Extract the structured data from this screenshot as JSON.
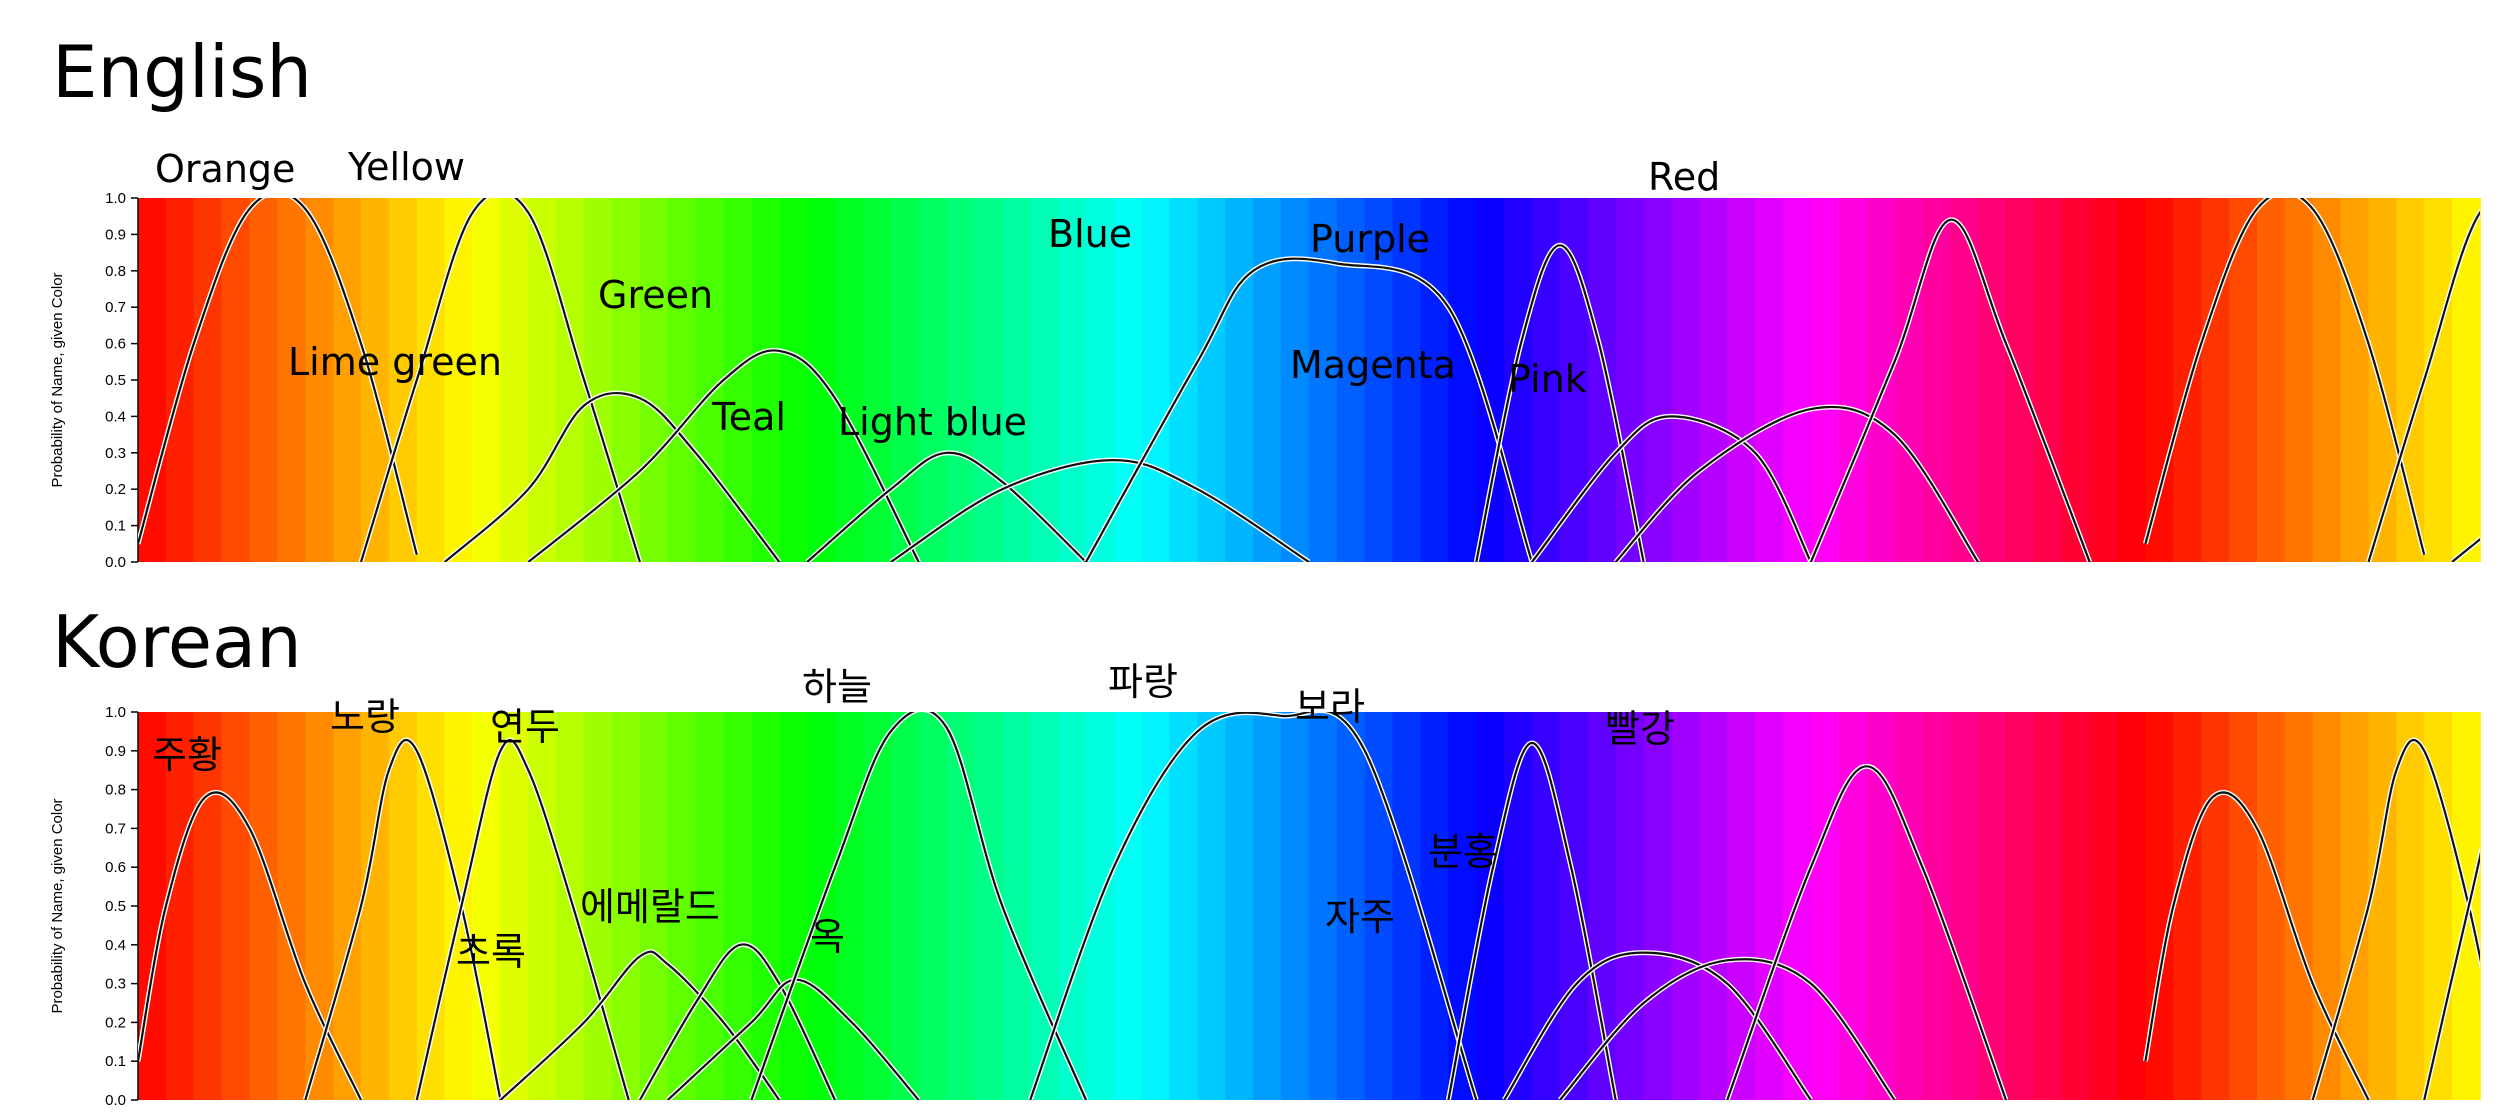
{
  "panels": [
    {
      "title": "English",
      "chart_data": {
        "type": "line",
        "ylabel": "Probability of Name, given Color",
        "ylim": [
          0,
          1
        ],
        "yticks": [
          "0.0",
          "0.1",
          "0.2",
          "0.3",
          "0.4",
          "0.5",
          "0.6",
          "0.7",
          "0.8",
          "0.9",
          "1.0"
        ],
        "xlabel": "",
        "x_hue_range_deg": [
          0,
          420
        ],
        "series": [
          {
            "name": "Orange",
            "x": [
              0,
              10,
              20,
              30,
              40,
              50
            ],
            "y": [
              0.05,
              0.6,
              0.97,
              0.97,
              0.6,
              0.02
            ]
          },
          {
            "name": "Yellow",
            "x": [
              40,
              50,
              60,
              70,
              80,
              90
            ],
            "y": [
              0.0,
              0.5,
              0.96,
              0.96,
              0.5,
              0.0
            ]
          },
          {
            "name": "Lime green",
            "x": [
              55,
              70,
              80,
              90,
              100,
              115
            ],
            "y": [
              0.0,
              0.2,
              0.43,
              0.45,
              0.3,
              0.0
            ]
          },
          {
            "name": "Green",
            "x": [
              70,
              90,
              105,
              115,
              125,
              140
            ],
            "y": [
              0.0,
              0.25,
              0.5,
              0.58,
              0.45,
              0.0
            ]
          },
          {
            "name": "Teal",
            "x": [
              120,
              135,
              145,
              155,
              170
            ],
            "y": [
              0.0,
              0.2,
              0.3,
              0.22,
              0.0
            ]
          },
          {
            "name": "Light blue",
            "x": [
              135,
              155,
              175,
              190,
              210
            ],
            "y": [
              0.0,
              0.2,
              0.28,
              0.2,
              0.0
            ]
          },
          {
            "name": "Blue",
            "x": [
              170,
              190,
              200,
              215,
              235,
              250
            ],
            "y": [
              0.0,
              0.55,
              0.8,
              0.82,
              0.7,
              0.0
            ]
          },
          {
            "name": "Purple",
            "x": [
              240,
              248,
              255,
              262,
              270
            ],
            "y": [
              0.0,
              0.6,
              0.87,
              0.6,
              0.0
            ]
          },
          {
            "name": "Magenta",
            "x": [
              250,
              265,
              275,
              290,
              300
            ],
            "y": [
              0.0,
              0.3,
              0.4,
              0.3,
              0.0
            ]
          },
          {
            "name": "Pink",
            "x": [
              265,
              280,
              300,
              315,
              330
            ],
            "y": [
              0.0,
              0.25,
              0.42,
              0.35,
              0.0
            ]
          },
          {
            "name": "Red",
            "x": [
              300,
              315,
              325,
              335,
              350
            ],
            "y": [
              0.0,
              0.55,
              0.94,
              0.6,
              0.0
            ]
          }
        ]
      }
    },
    {
      "title": "Korean",
      "chart_data": {
        "type": "line",
        "ylabel": "Probability of Name, given Color",
        "ylim": [
          0,
          1
        ],
        "yticks": [
          "0.0",
          "0.1",
          "0.2",
          "0.3",
          "0.4",
          "0.5",
          "0.6",
          "0.7",
          "0.8",
          "0.9",
          "1.0"
        ],
        "xlabel": "",
        "x_hue_range_deg": [
          0,
          420
        ],
        "series": [
          {
            "name": "주황",
            "x": [
              0,
              5,
              12,
              20,
              30,
              40
            ],
            "y": [
              0.1,
              0.5,
              0.78,
              0.7,
              0.3,
              0.0
            ]
          },
          {
            "name": "노랑",
            "x": [
              30,
              40,
              45,
              50,
              58,
              65
            ],
            "y": [
              0.0,
              0.5,
              0.85,
              0.9,
              0.5,
              0.0
            ]
          },
          {
            "name": "연두",
            "x": [
              50,
              58,
              65,
              70,
              78,
              88
            ],
            "y": [
              0.0,
              0.5,
              0.9,
              0.85,
              0.5,
              0.0
            ]
          },
          {
            "name": "초록",
            "x": [
              65,
              80,
              90,
              95,
              105,
              115
            ],
            "y": [
              0.0,
              0.2,
              0.37,
              0.35,
              0.2,
              0.0
            ]
          },
          {
            "name": "에메랄드",
            "x": [
              90,
              100,
              108,
              115,
              125
            ],
            "y": [
              0.0,
              0.25,
              0.4,
              0.3,
              0.0
            ]
          },
          {
            "name": "옥",
            "x": [
              95,
              110,
              118,
              128,
              140
            ],
            "y": [
              0.0,
              0.2,
              0.31,
              0.2,
              0.0
            ]
          },
          {
            "name": "하늘",
            "x": [
              110,
              125,
              135,
              145,
              155,
              170
            ],
            "y": [
              0.0,
              0.6,
              0.95,
              0.96,
              0.5,
              0.0
            ]
          },
          {
            "name": "파랑",
            "x": [
              160,
              175,
              190,
              205,
              220,
              240
            ],
            "y": [
              0.0,
              0.6,
              0.95,
              0.99,
              0.9,
              0.0
            ]
          },
          {
            "name": "보라",
            "x": [
              235,
              243,
              250,
              257,
              265
            ],
            "y": [
              0.0,
              0.6,
              0.92,
              0.6,
              0.0
            ]
          },
          {
            "name": "자주",
            "x": [
              245,
              258,
              270,
              285,
              300
            ],
            "y": [
              0.0,
              0.3,
              0.38,
              0.3,
              0.0
            ]
          },
          {
            "name": "분홍",
            "x": [
              255,
              270,
              285,
              300,
              315
            ],
            "y": [
              0.0,
              0.25,
              0.36,
              0.3,
              0.0
            ]
          },
          {
            "name": "빨강",
            "x": [
              285,
              300,
              310,
              320,
              335
            ],
            "y": [
              0.0,
              0.6,
              0.86,
              0.6,
              0.0
            ]
          }
        ]
      }
    }
  ]
}
